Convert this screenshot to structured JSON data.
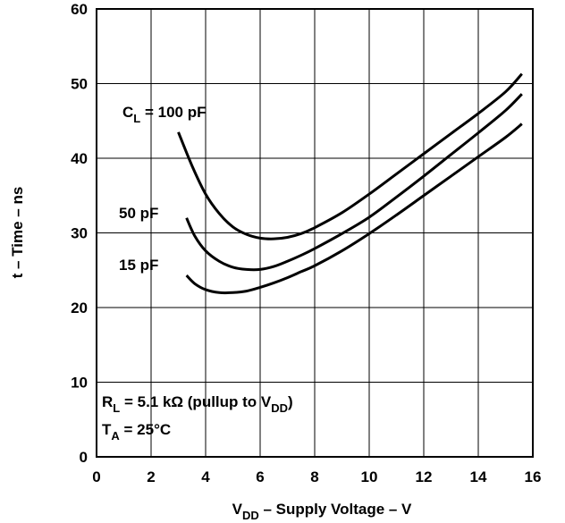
{
  "chart_data": {
    "type": "line",
    "xlabel": {
      "prefix": "V",
      "sub": "DD",
      "suffix": " – Supply Voltage – V"
    },
    "ylabel": "t – Time – ns",
    "xlim": [
      0,
      16
    ],
    "ylim": [
      0,
      60
    ],
    "x_ticks": [
      "0",
      "2",
      "4",
      "6",
      "8",
      "10",
      "12",
      "14",
      "16"
    ],
    "y_ticks": [
      "0",
      "10",
      "20",
      "30",
      "40",
      "50",
      "60"
    ],
    "grid": true,
    "colors": {
      "line": "#000000",
      "grid": "#000000",
      "background": "#ffffff"
    },
    "series": [
      {
        "name": "C_L = 100 pF",
        "x": [
          3,
          3.5,
          4,
          4.5,
          5,
          5.5,
          6,
          6.5,
          7,
          7.5,
          8,
          9,
          10,
          11,
          12,
          13,
          14,
          15,
          15.6
        ],
        "y": [
          43.5,
          39,
          35.2,
          32.6,
          30.8,
          29.8,
          29.3,
          29.2,
          29.4,
          29.9,
          30.7,
          32.7,
          35.2,
          37.9,
          40.6,
          43.3,
          46.0,
          48.9,
          51.3
        ]
      },
      {
        "name": "50 pF",
        "x": [
          3.3,
          3.6,
          4,
          4.5,
          5,
          5.5,
          6,
          6.5,
          7,
          7.5,
          8,
          9,
          10,
          11,
          12,
          13,
          14,
          15,
          15.6
        ],
        "y": [
          32,
          29.6,
          27.6,
          26.2,
          25.4,
          25.1,
          25.1,
          25.5,
          26.2,
          27.0,
          27.9,
          29.9,
          32.1,
          34.8,
          37.6,
          40.5,
          43.4,
          46.4,
          48.6
        ]
      },
      {
        "name": "15 pF",
        "x": [
          3.3,
          3.6,
          4,
          4.5,
          5,
          5.5,
          6,
          6.5,
          7,
          7.5,
          8,
          9,
          10,
          11,
          12,
          13,
          14,
          15,
          15.6
        ],
        "y": [
          24.3,
          23.2,
          22.4,
          22.0,
          22.0,
          22.2,
          22.7,
          23.3,
          24.0,
          24.8,
          25.6,
          27.6,
          29.9,
          32.4,
          35.0,
          37.6,
          40.2,
          42.8,
          44.6
        ]
      }
    ],
    "series_labels": {
      "cl_100": {
        "prefix": "C",
        "sub": "L",
        "suffix": " = 100 pF"
      },
      "cl_50": "50 pF",
      "cl_15": "15 pF"
    },
    "annotations": {
      "rl": {
        "prefix": "R",
        "sub": "L",
        "middle": " = 5.1 kΩ (pullup to V",
        "sub2": "DD",
        "suffix": ")"
      },
      "ta": {
        "prefix": "T",
        "sub": "A",
        "suffix": " = 25°C"
      }
    }
  }
}
